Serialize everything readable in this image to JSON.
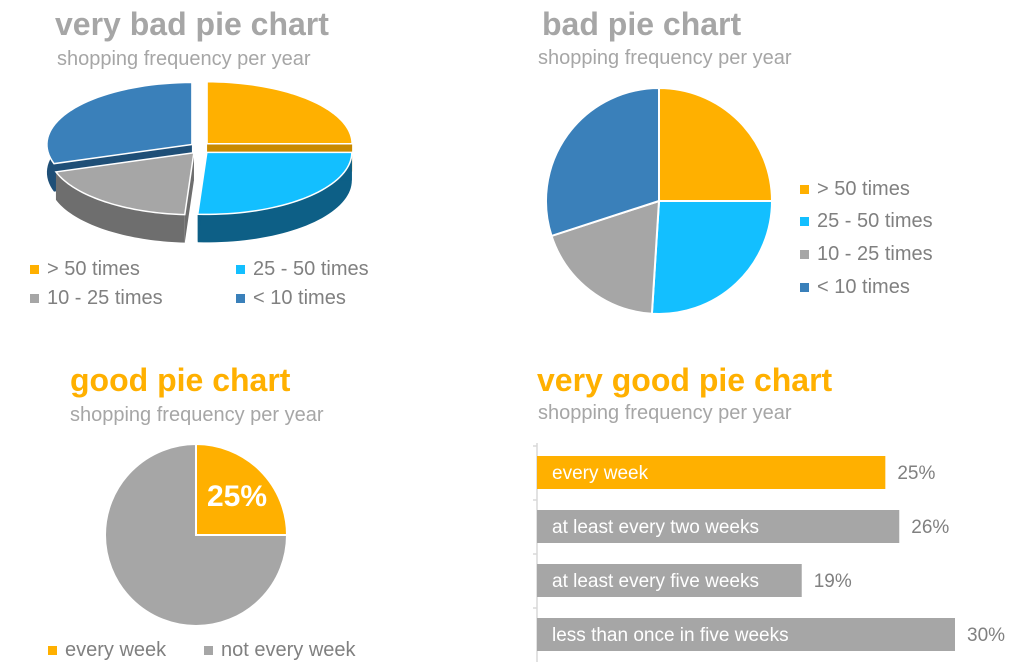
{
  "colors": {
    "orange": "#ffb000",
    "cyan": "#13bfff",
    "gray": "#a6a6a6",
    "blue": "#3a80ba",
    "title_gray": "#a6a6a6",
    "title_orange": "#ffb000"
  },
  "chart_data": [
    {
      "type": "pie",
      "title": "very bad pie chart",
      "subtitle": "shopping frequency per year",
      "style": "3d-exploded",
      "categories": [
        "> 50 times",
        "25 - 50 times",
        "10 - 25 times",
        "< 10 times"
      ],
      "values": [
        25,
        26,
        19,
        30
      ],
      "legend_position": "bottom"
    },
    {
      "type": "pie",
      "title": "bad pie chart",
      "subtitle": "shopping frequency per year",
      "categories": [
        "> 50 times",
        "25 - 50 times",
        "10 - 25 times",
        "< 10 times"
      ],
      "values": [
        25,
        26,
        19,
        30
      ],
      "legend_position": "right"
    },
    {
      "type": "pie",
      "title": "good pie chart",
      "subtitle": "shopping frequency per year",
      "categories": [
        "every week",
        "not every week"
      ],
      "values": [
        25,
        75
      ],
      "data_label": "25%",
      "legend_position": "bottom"
    },
    {
      "type": "bar",
      "title": "very good pie chart",
      "subtitle": "shopping frequency per year",
      "orientation": "horizontal",
      "categories": [
        "every week",
        "at least every two weeks",
        "at least every five weeks",
        "less than once in five weeks"
      ],
      "values": [
        25,
        26,
        19,
        30
      ],
      "value_labels": [
        "25%",
        "26%",
        "19%",
        "30%"
      ],
      "highlight": "every week"
    }
  ]
}
